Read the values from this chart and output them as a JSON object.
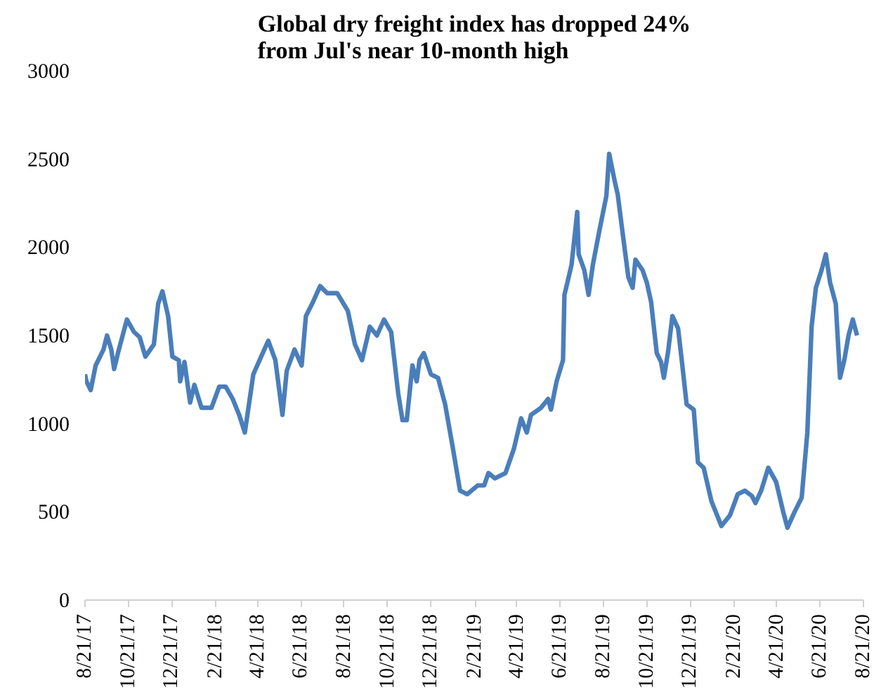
{
  "chart_data": {
    "type": "line",
    "title": "Global dry freight index has dropped 24%\nfrom Jul's near 10-month high",
    "x": [
      "2017-08-21",
      "2017-08-23",
      "2017-08-29",
      "2017-09-05",
      "2017-09-16",
      "2017-09-21",
      "2017-09-27",
      "2017-10-01",
      "2017-10-07",
      "2017-10-19",
      "2017-10-29",
      "2017-11-06",
      "2017-11-14",
      "2017-11-26",
      "2017-12-02",
      "2017-12-08",
      "2017-12-16",
      "2017-12-22",
      "2017-12-31",
      "2018-01-02",
      "2018-01-08",
      "2018-01-16",
      "2018-01-22",
      "2018-02-01",
      "2018-02-15",
      "2018-02-26",
      "2018-03-07",
      "2018-03-17",
      "2018-03-26",
      "2018-04-03",
      "2018-04-15",
      "2018-04-26",
      "2018-05-06",
      "2018-05-16",
      "2018-05-26",
      "2018-06-01",
      "2018-06-12",
      "2018-06-22",
      "2018-06-28",
      "2018-07-08",
      "2018-07-18",
      "2018-07-28",
      "2018-08-11",
      "2018-08-26",
      "2018-09-05",
      "2018-09-15",
      "2018-09-26",
      "2018-10-06",
      "2018-10-16",
      "2018-10-26",
      "2018-11-05",
      "2018-11-11",
      "2018-11-17",
      "2018-11-25",
      "2018-12-01",
      "2018-12-05",
      "2018-12-11",
      "2018-12-21",
      "2018-12-31",
      "2019-01-10",
      "2019-01-21",
      "2019-01-31",
      "2019-02-10",
      "2019-02-25",
      "2019-03-06",
      "2019-03-12",
      "2019-03-21",
      "2019-04-05",
      "2019-04-17",
      "2019-04-27",
      "2019-05-05",
      "2019-05-11",
      "2019-05-25",
      "2019-06-04",
      "2019-06-08",
      "2019-06-16",
      "2019-06-25",
      "2019-06-27",
      "2019-07-07",
      "2019-07-15",
      "2019-07-17",
      "2019-07-25",
      "2019-07-31",
      "2019-08-06",
      "2019-08-15",
      "2019-08-25",
      "2019-08-29",
      "2019-09-06",
      "2019-09-10",
      "2019-09-16",
      "2019-09-25",
      "2019-10-01",
      "2019-10-05",
      "2019-10-15",
      "2019-10-21",
      "2019-10-27",
      "2019-11-04",
      "2019-11-10",
      "2019-11-14",
      "2019-11-20",
      "2019-11-26",
      "2019-12-04",
      "2019-12-10",
      "2019-12-16",
      "2019-12-26",
      "2020-01-01",
      "2020-01-09",
      "2020-01-20",
      "2020-02-03",
      "2020-02-15",
      "2020-02-26",
      "2020-03-07",
      "2020-03-17",
      "2020-03-22",
      "2020-03-30",
      "2020-04-09",
      "2020-04-20",
      "2020-04-30",
      "2020-05-06",
      "2020-05-16",
      "2020-05-26",
      "2020-06-03",
      "2020-06-09",
      "2020-06-15",
      "2020-06-23",
      "2020-06-29",
      "2020-07-05",
      "2020-07-13",
      "2020-07-19",
      "2020-07-25",
      "2020-07-31",
      "2020-08-06",
      "2020-08-12"
    ],
    "series": [
      {
        "color": "#4a7ebb",
        "values": [
          1280,
          1240,
          1190,
          1330,
          1420,
          1500,
          1420,
          1310,
          1410,
          1590,
          1520,
          1490,
          1380,
          1450,
          1680,
          1750,
          1610,
          1380,
          1360,
          1240,
          1350,
          1120,
          1220,
          1090,
          1090,
          1210,
          1210,
          1140,
          1050,
          950,
          1280,
          1380,
          1470,
          1360,
          1050,
          1300,
          1420,
          1330,
          1610,
          1690,
          1780,
          1740,
          1740,
          1640,
          1450,
          1360,
          1550,
          1500,
          1590,
          1520,
          1170,
          1020,
          1020,
          1330,
          1240,
          1360,
          1400,
          1280,
          1260,
          1110,
          860,
          620,
          600,
          650,
          650,
          720,
          690,
          720,
          860,
          1030,
          950,
          1050,
          1090,
          1140,
          1080,
          1240,
          1360,
          1730,
          1900,
          2200,
          1960,
          1870,
          1730,
          1900,
          2090,
          2290,
          2530,
          2370,
          2300,
          2110,
          1830,
          1770,
          1930,
          1870,
          1800,
          1690,
          1400,
          1350,
          1260,
          1410,
          1610,
          1540,
          1330,
          1110,
          1080,
          780,
          750,
          560,
          420,
          480,
          600,
          620,
          590,
          550,
          620,
          750,
          670,
          500,
          410,
          500,
          580,
          950,
          1550,
          1770,
          1870,
          1960,
          1800,
          1680,
          1260,
          1360,
          1500,
          1590,
          1500
        ]
      }
    ],
    "xlim": [
      "2017-08-21",
      "2020-08-21"
    ],
    "xticks": [
      {
        "value": "2017-08-21",
        "label": "8/21/17"
      },
      {
        "value": "2017-10-21",
        "label": "10/21/17"
      },
      {
        "value": "2017-12-21",
        "label": "12/21/17"
      },
      {
        "value": "2018-02-21",
        "label": "2/21/18"
      },
      {
        "value": "2018-04-21",
        "label": "4/21/18"
      },
      {
        "value": "2018-06-21",
        "label": "6/21/18"
      },
      {
        "value": "2018-08-21",
        "label": "8/21/18"
      },
      {
        "value": "2018-10-21",
        "label": "10/21/18"
      },
      {
        "value": "2018-12-21",
        "label": "12/21/18"
      },
      {
        "value": "2019-02-21",
        "label": "2/21/19"
      },
      {
        "value": "2019-04-21",
        "label": "4/21/19"
      },
      {
        "value": "2019-06-21",
        "label": "6/21/19"
      },
      {
        "value": "2019-08-21",
        "label": "8/21/19"
      },
      {
        "value": "2019-10-21",
        "label": "10/21/19"
      },
      {
        "value": "2019-12-21",
        "label": "12/21/19"
      },
      {
        "value": "2020-02-21",
        "label": "2/21/20"
      },
      {
        "value": "2020-04-21",
        "label": "4/21/20"
      },
      {
        "value": "2020-06-21",
        "label": "6/21/20"
      },
      {
        "value": "2020-08-21",
        "label": "8/21/20"
      }
    ],
    "ylim": [
      0,
      3000
    ],
    "yticks": [
      0,
      500,
      1000,
      1500,
      2000,
      2500,
      3000
    ],
    "grid": false,
    "line_style": "solid"
  }
}
